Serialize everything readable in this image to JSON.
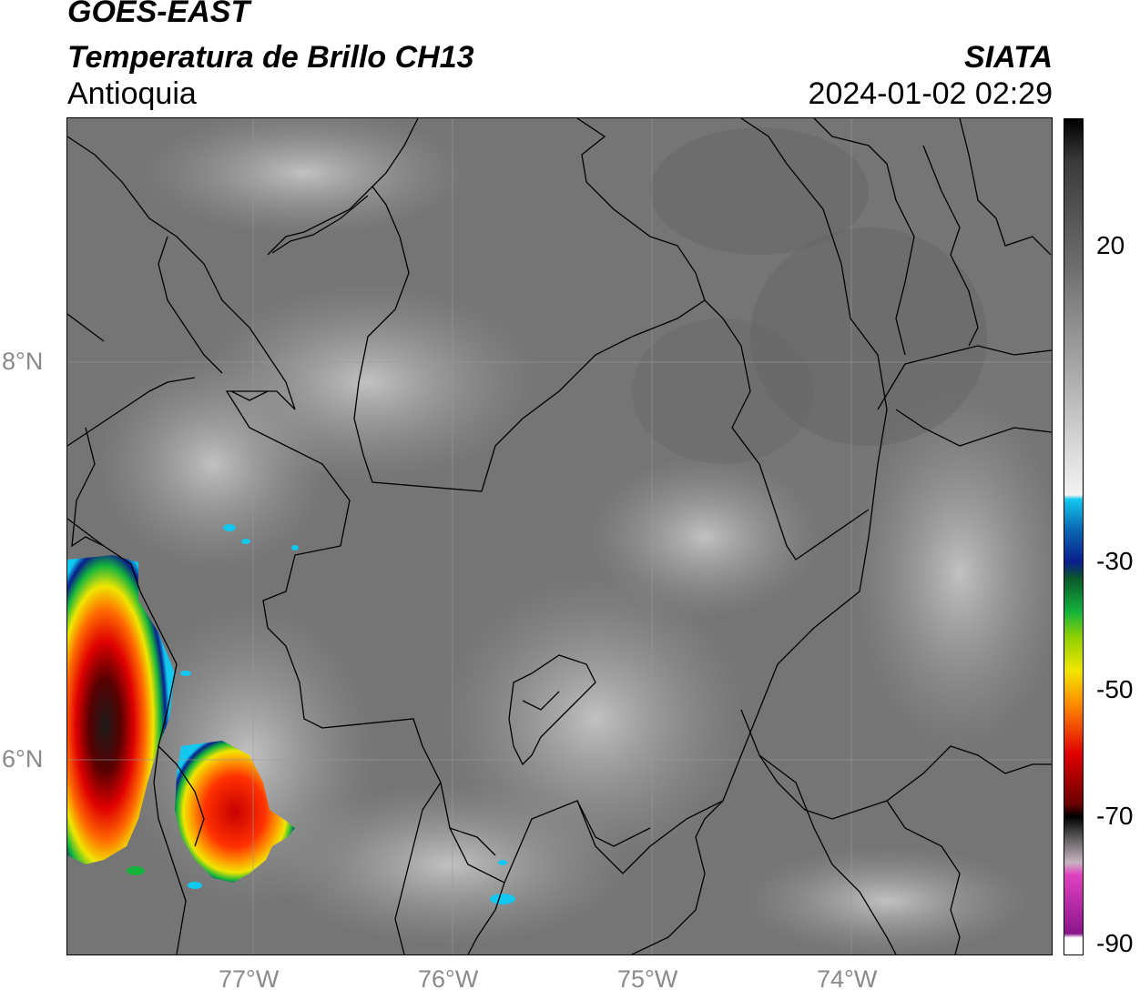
{
  "header": {
    "satellite": "GOES-EAST",
    "product": "Temperatura de Brillo CH13",
    "region": "Antioquia",
    "organization": "SIATA",
    "datetime": "2024-01-02 02:29"
  },
  "map": {
    "lat_ticks": [
      "8°N",
      "6°N"
    ],
    "lon_ticks": [
      "77°W",
      "76°W",
      "75°W",
      "74°W"
    ]
  },
  "colorbar": {
    "unit_ticks": [
      "20",
      "-30",
      "-50",
      "-70",
      "-90"
    ],
    "colors": {
      "warm_gray": "#6f6f6f",
      "cold_white": "#f2f2f2",
      "cyan": "#12c8ee",
      "blue": "#0a1e8c",
      "green": "#14b43c",
      "yellow": "#f0e600",
      "orange": "#ff8c00",
      "red": "#e00000",
      "dark_red": "#6a0000",
      "black": "#000000",
      "pink": "#e040c0",
      "purple": "#8a168a"
    }
  }
}
